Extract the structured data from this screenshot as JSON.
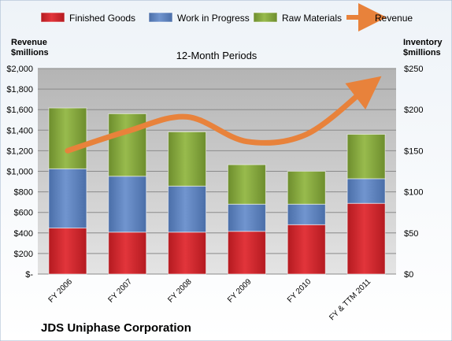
{
  "chart_data": {
    "type": "bar",
    "stacked": true,
    "title": "12-Month Periods",
    "footer_title": "JDS Uniphase Corporation",
    "left_axis_title": [
      "Revenue",
      "$millions"
    ],
    "right_axis_title": [
      "Inventory",
      "$millions"
    ],
    "categories": [
      "FY 2006",
      "FY 2007",
      "FY 2008",
      "FY 2009",
      "FY 2010",
      "FY & TTM 2011"
    ],
    "series": [
      {
        "name": "Finished Goods",
        "axis": "right",
        "color": "#d9242b",
        "values": [
          56,
          51,
          51,
          52,
          60,
          86
        ]
      },
      {
        "name": "Work in Progress",
        "axis": "right",
        "color": "#5f83bf",
        "values": [
          72,
          68,
          56,
          33,
          25,
          30
        ]
      },
      {
        "name": "Raw Materials",
        "axis": "right",
        "color": "#84a83b",
        "values": [
          74,
          76,
          66,
          48,
          40,
          54
        ]
      },
      {
        "name": "Revenue",
        "axis": "left",
        "type": "line",
        "color": "#e8823b",
        "values": [
          1200,
          1390,
          1530,
          1290,
          1360,
          1810
        ]
      }
    ],
    "left_axis": {
      "ylim": [
        0,
        2000
      ],
      "ticks": [
        "$-",
        "$200",
        "$400",
        "$600",
        "$800",
        "$1,000",
        "$1,200",
        "$1,400",
        "$1,600",
        "$1,800",
        "$2,000"
      ]
    },
    "right_axis": {
      "ylim": [
        0,
        250
      ],
      "ticks": [
        "$0",
        "$50",
        "$100",
        "$150",
        "$200",
        "$250"
      ]
    },
    "legend_position": "top",
    "grid": true
  }
}
